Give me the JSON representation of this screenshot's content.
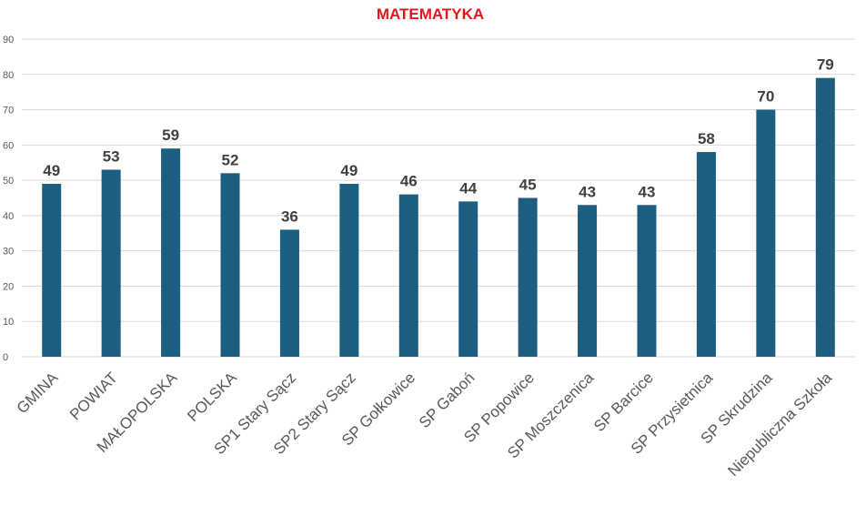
{
  "colors": {
    "bar": "#1b5e80",
    "title": "#e8141b",
    "grid": "#d9d9d9"
  },
  "chart_data": {
    "type": "bar",
    "title": "MATEMATYKA",
    "xlabel": "",
    "ylabel": "",
    "ylim": [
      0,
      90
    ],
    "yticks": [
      0,
      10,
      20,
      30,
      40,
      50,
      60,
      70,
      80,
      90
    ],
    "grid": true,
    "legend": "none",
    "categories": [
      "GMINA",
      "POWIAT",
      "MAŁOPOLSKA",
      "POLSKA",
      "SP1 Stary Sącz",
      "SP2 Stary Sącz",
      "SP Gołkowice",
      "SP Gaboń",
      "SP Popowice",
      "SP Moszczenica",
      "SP Barcice",
      "SP Przysietnica",
      "SP Skrudzina",
      "Niepubliczna Szkoła"
    ],
    "values": [
      49,
      53,
      59,
      52,
      36,
      49,
      46,
      44,
      45,
      43,
      43,
      58,
      70,
      79
    ]
  }
}
